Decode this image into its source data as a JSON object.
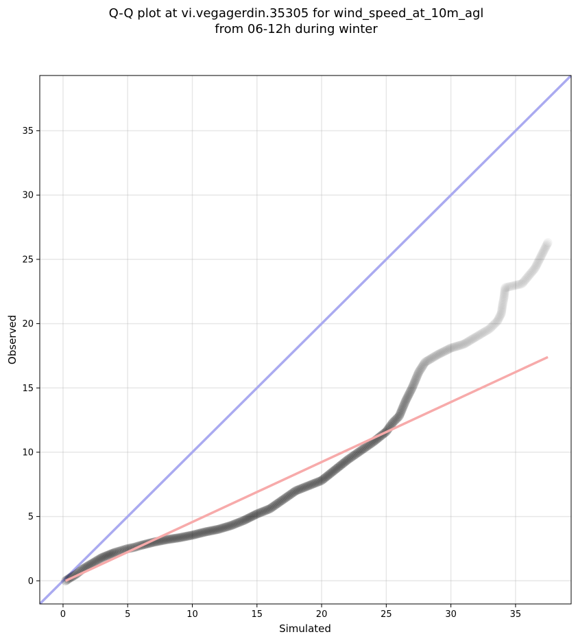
{
  "chart_data": {
    "type": "scatter",
    "title_line1": "Q-Q plot at vi.vegagerdin.35305 for wind_speed_at_10m_agl",
    "title_line2": "from 06-12h during winter",
    "xlabel": "Simulated",
    "ylabel": "Observed",
    "xlim": [
      -1.8,
      39.3
    ],
    "ylim": [
      -1.8,
      39.3
    ],
    "xticks": [
      0,
      5,
      10,
      15,
      20,
      25,
      30,
      35
    ],
    "yticks": [
      0,
      5,
      10,
      15,
      20,
      25,
      30,
      35
    ],
    "grid": true,
    "identity_line": {
      "from": [
        -1.8,
        -1.8
      ],
      "to": [
        39.3,
        39.3
      ],
      "color": "#aaaaf0"
    },
    "fit_line": {
      "from": [
        0.2,
        0.0
      ],
      "to": [
        37.5,
        17.4
      ],
      "color": "#f7aaaa"
    },
    "point_color": "#000000",
    "quantiles": [
      [
        0.2,
        0.0
      ],
      [
        0.5,
        0.2
      ],
      [
        1.0,
        0.5
      ],
      [
        1.5,
        0.9
      ],
      [
        2.0,
        1.2
      ],
      [
        2.5,
        1.5
      ],
      [
        3.0,
        1.8
      ],
      [
        3.5,
        2.0
      ],
      [
        4.0,
        2.2
      ],
      [
        4.5,
        2.35
      ],
      [
        5.0,
        2.5
      ],
      [
        5.5,
        2.6
      ],
      [
        6.0,
        2.75
      ],
      [
        7.0,
        3.0
      ],
      [
        8.0,
        3.2
      ],
      [
        9.0,
        3.35
      ],
      [
        10.0,
        3.55
      ],
      [
        11.0,
        3.8
      ],
      [
        12.0,
        4.0
      ],
      [
        13.0,
        4.3
      ],
      [
        14.0,
        4.7
      ],
      [
        15.0,
        5.2
      ],
      [
        16.0,
        5.6
      ],
      [
        17.0,
        6.3
      ],
      [
        18.0,
        7.0
      ],
      [
        19.0,
        7.4
      ],
      [
        20.0,
        7.8
      ],
      [
        21.0,
        8.6
      ],
      [
        22.0,
        9.4
      ],
      [
        23.0,
        10.1
      ],
      [
        24.0,
        10.8
      ],
      [
        25.0,
        11.6
      ],
      [
        25.5,
        12.3
      ],
      [
        26.0,
        12.8
      ],
      [
        26.5,
        14.0
      ],
      [
        27.0,
        15.0
      ],
      [
        27.5,
        16.2
      ],
      [
        28.0,
        17.0
      ],
      [
        29.0,
        17.6
      ],
      [
        30.0,
        18.1
      ],
      [
        31.0,
        18.4
      ],
      [
        32.0,
        19.0
      ],
      [
        33.0,
        19.6
      ],
      [
        33.6,
        20.2
      ],
      [
        33.9,
        20.8
      ],
      [
        34.0,
        21.5
      ],
      [
        34.1,
        22.0
      ],
      [
        34.2,
        22.8
      ],
      [
        35.5,
        23.1
      ],
      [
        36.5,
        24.3
      ],
      [
        37.5,
        26.3
      ]
    ]
  }
}
